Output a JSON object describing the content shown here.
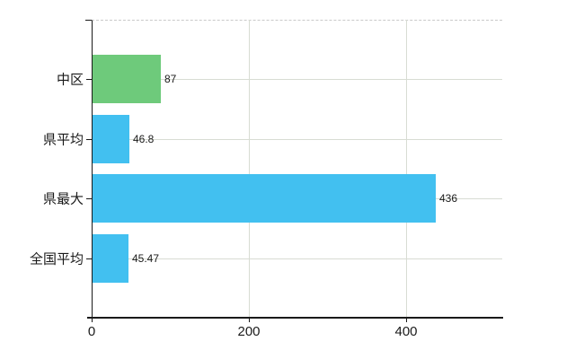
{
  "chart_data": {
    "type": "bar",
    "orientation": "horizontal",
    "title": "",
    "xlabel": "",
    "ylabel": "",
    "categories": [
      "中区",
      "県平均",
      "県最大",
      "全国平均"
    ],
    "values": [
      87,
      46.8,
      436,
      45.47
    ],
    "value_labels": [
      "87",
      "46.8",
      "436",
      "45.47"
    ],
    "bar_colors": [
      "#6eca7b",
      "#42c0f0",
      "#42c0f0",
      "#42c0f0"
    ],
    "x_tick_values": [
      0,
      200,
      400
    ],
    "x_tick_labels": [
      "0",
      "200",
      "400"
    ],
    "xlim": [
      0,
      522
    ],
    "grid": true,
    "legend": false,
    "colors": {
      "highlight_bar": "#6eca7b",
      "default_bar": "#42c0f0",
      "gridline": "#d8dcd3",
      "top_border_dashed": "#c9c9c9",
      "axis": "#1a1a1a",
      "text": "#1a1a1a",
      "background": "#ffffff"
    }
  }
}
